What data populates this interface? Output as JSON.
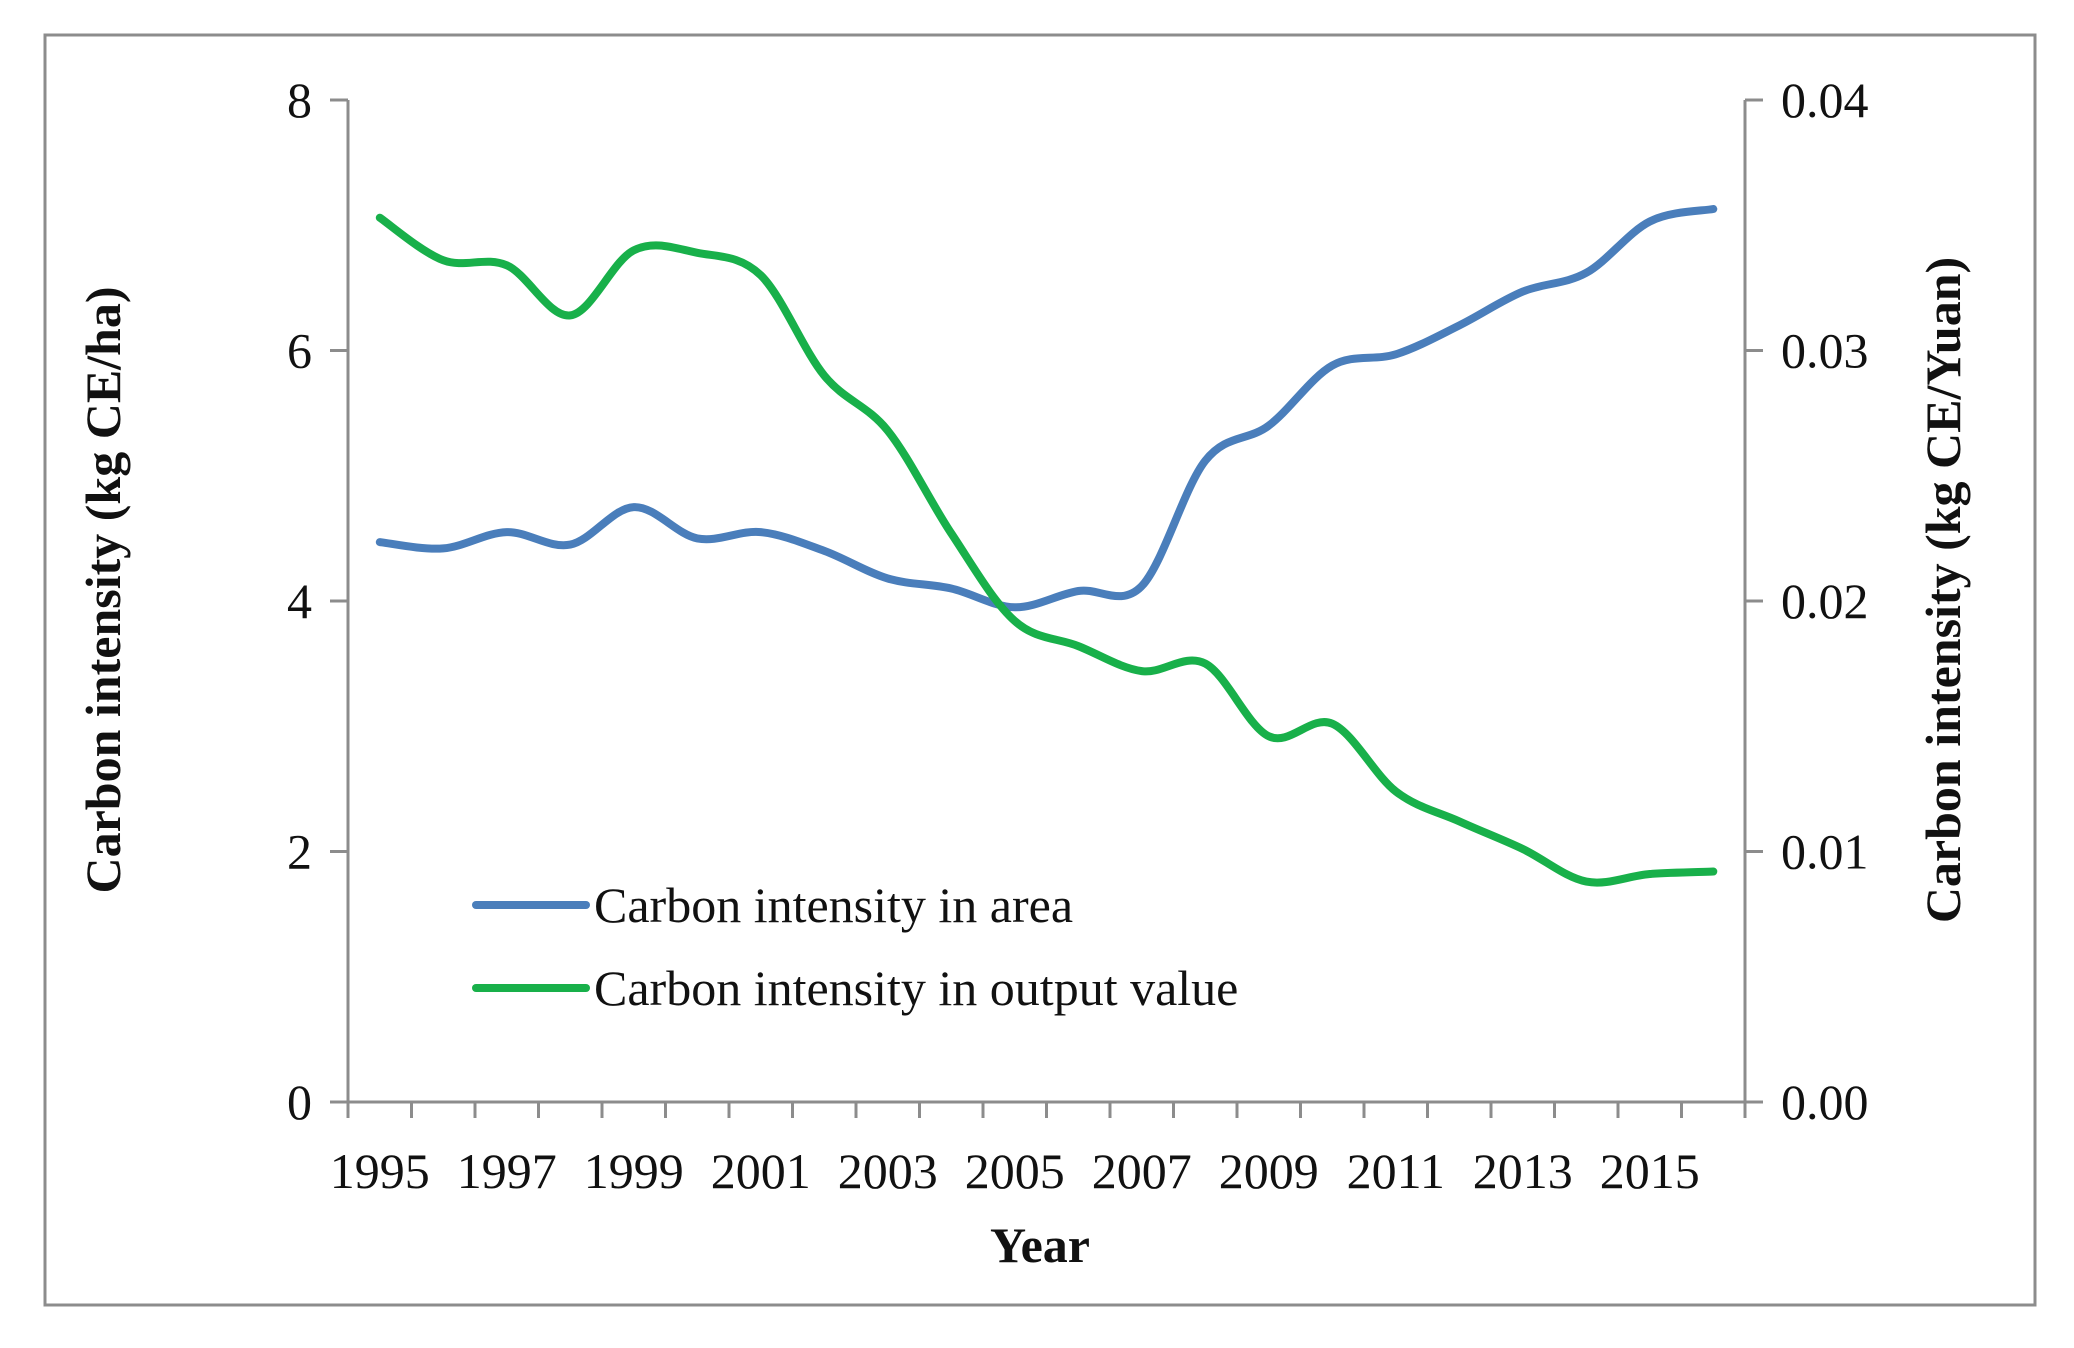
{
  "chart_data": {
    "type": "line",
    "xlabel": "Year",
    "ylabel": "Carbon intensity  (kg CE/ha)",
    "y2label": "Carbon intensity  (kg  CE/Yuan)",
    "x_tick_labels": [
      "1995",
      "1997",
      "1999",
      "2001",
      "2003",
      "2005",
      "2007",
      "2009",
      "2011",
      "2013",
      "2015"
    ],
    "ylim": [
      0,
      8
    ],
    "y_ticks": [
      "0",
      "2",
      "4",
      "6",
      "8"
    ],
    "y2lim": [
      0,
      0.04
    ],
    "y2_ticks": [
      "0.00",
      "0.01",
      "0.02",
      "0.03",
      "0.04"
    ],
    "legend_position": "lower-left",
    "x": [
      1995,
      1996,
      1997,
      1998,
      1999,
      2000,
      2001,
      2002,
      2003,
      2004,
      2005,
      2006,
      2007,
      2008,
      2009,
      2010,
      2011,
      2012,
      2013,
      2014,
      2015,
      2016
    ],
    "series": [
      {
        "name": "Carbon intensity in area",
        "axis": "left",
        "color": "#4a7ebb",
        "values": [
          4.47,
          4.42,
          4.55,
          4.45,
          4.75,
          4.5,
          4.55,
          4.4,
          4.18,
          4.1,
          3.95,
          4.08,
          4.12,
          5.12,
          5.4,
          5.88,
          5.97,
          6.2,
          6.47,
          6.62,
          7.03,
          7.13
        ]
      },
      {
        "name": "Carbon intensity in output value",
        "axis": "right",
        "color": "#18b04a",
        "values": [
          0.0353,
          0.0336,
          0.0334,
          0.0314,
          0.034,
          0.0339,
          0.033,
          0.029,
          0.0268,
          0.0227,
          0.0192,
          0.0182,
          0.0172,
          0.0175,
          0.0146,
          0.0151,
          0.0124,
          0.0112,
          0.0101,
          0.0088,
          0.0091,
          0.0092
        ]
      }
    ]
  }
}
